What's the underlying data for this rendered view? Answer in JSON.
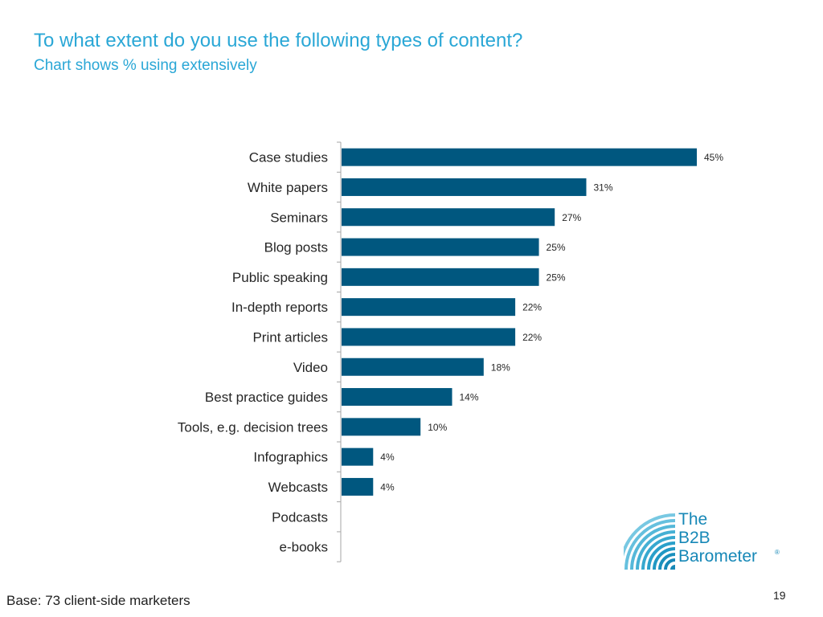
{
  "slide": {
    "title": "To what extent do you use the following types of content?",
    "subtitle": "Chart shows % using extensively",
    "footer_base": "Base: 73 client-side marketers",
    "page_number": "19"
  },
  "logo": {
    "line1": "The",
    "line2": "B2B",
    "line3": "Barometer",
    "registered": "®",
    "color": "#1788b7"
  },
  "chart_data": {
    "type": "bar",
    "orientation": "horizontal",
    "categories": [
      "Case studies",
      "White papers",
      "Seminars",
      "Blog posts",
      "Public speaking",
      "In-depth reports",
      "Print articles",
      "Video",
      "Best practice guides",
      "Tools, e.g. decision trees",
      "Infographics",
      "Webcasts",
      "Podcasts",
      "e-books"
    ],
    "values": [
      45,
      31,
      27,
      25,
      25,
      22,
      22,
      18,
      14,
      10,
      4,
      4,
      0,
      0
    ],
    "labels": [
      "45%",
      "31%",
      "27%",
      "25%",
      "25%",
      "22%",
      "22%",
      "18%",
      "14%",
      "10%",
      "4%",
      "4%",
      "",
      ""
    ],
    "unit": "%",
    "xlim": [
      0,
      45
    ],
    "grid": false,
    "bar_color": "#00577f",
    "axis_color": "#a6a6a6"
  }
}
